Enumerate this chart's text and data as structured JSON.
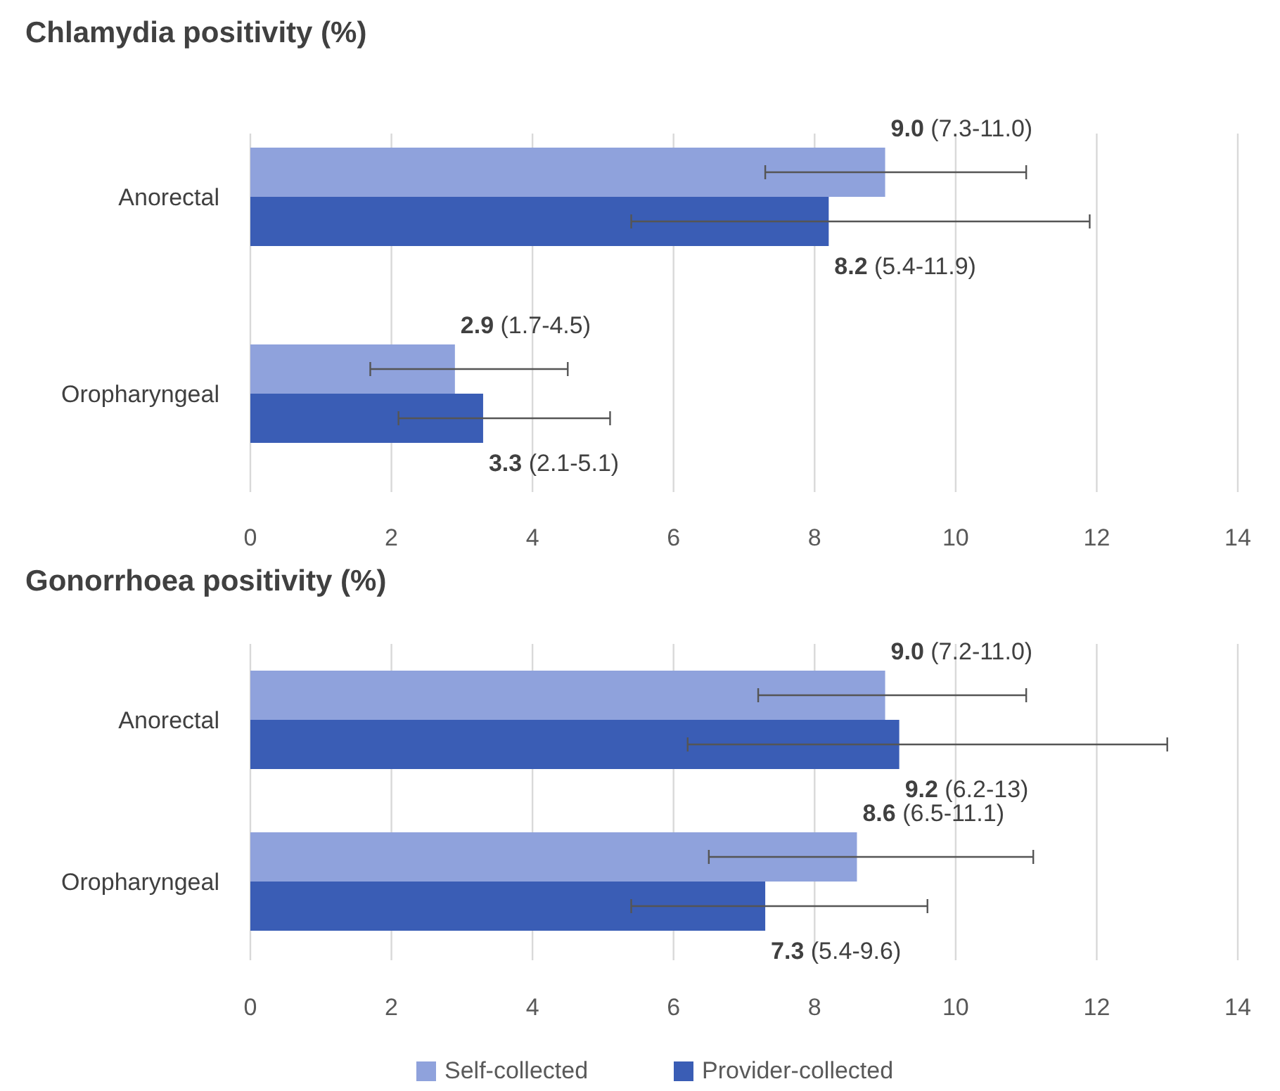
{
  "chart_data": [
    {
      "type": "bar",
      "orientation": "horizontal",
      "title": "Chlamydia positivity (%)",
      "categories": [
        "Anorectal",
        "Oropharyngeal"
      ],
      "xlim": [
        0,
        14
      ],
      "xticks": [
        0,
        2,
        4,
        6,
        8,
        10,
        12,
        14
      ],
      "grid": "x",
      "series": [
        {
          "color": "#8fa2dc",
          "values": [
            9.0,
            2.9
          ],
          "errors": [
            [
              7.3,
              11.0
            ],
            [
              1.7,
              4.5
            ]
          ],
          "value_labels": [
            "9.0 (7.3-11.0)",
            "2.9 (1.7-4.5)"
          ]
        },
        {
          "color": "#3a5db5",
          "values": [
            8.2,
            3.3
          ],
          "errors": [
            [
              5.4,
              11.9
            ],
            [
              2.1,
              5.1
            ]
          ],
          "value_labels": [
            "8.2 (5.4-11.9)",
            "3.3 (2.1-5.1)"
          ]
        }
      ]
    },
    {
      "type": "bar",
      "orientation": "horizontal",
      "title": "Gonorrhoea positivity (%)",
      "categories": [
        "Anorectal",
        "Oropharyngeal"
      ],
      "xlim": [
        0,
        14
      ],
      "xticks": [
        0,
        2,
        4,
        6,
        8,
        10,
        12,
        14
      ],
      "grid": "x",
      "legend": "bottom",
      "series": [
        {
          "name": "Self-collected",
          "color": "#8fa2dc",
          "values": [
            9.0,
            8.6
          ],
          "errors": [
            [
              7.2,
              11.0
            ],
            [
              6.5,
              11.1
            ]
          ],
          "value_labels": [
            "9.0 (7.2-11.0)",
            "8.6 (6.5-11.1)"
          ]
        },
        {
          "name": "Provider-collected",
          "color": "#3a5db5",
          "values": [
            9.2,
            7.3
          ],
          "errors": [
            [
              6.2,
              13
            ],
            [
              5.4,
              9.6
            ]
          ],
          "value_labels": [
            "9.2 (6.2-13)",
            "7.3 (5.4-9.6)"
          ]
        }
      ]
    }
  ]
}
